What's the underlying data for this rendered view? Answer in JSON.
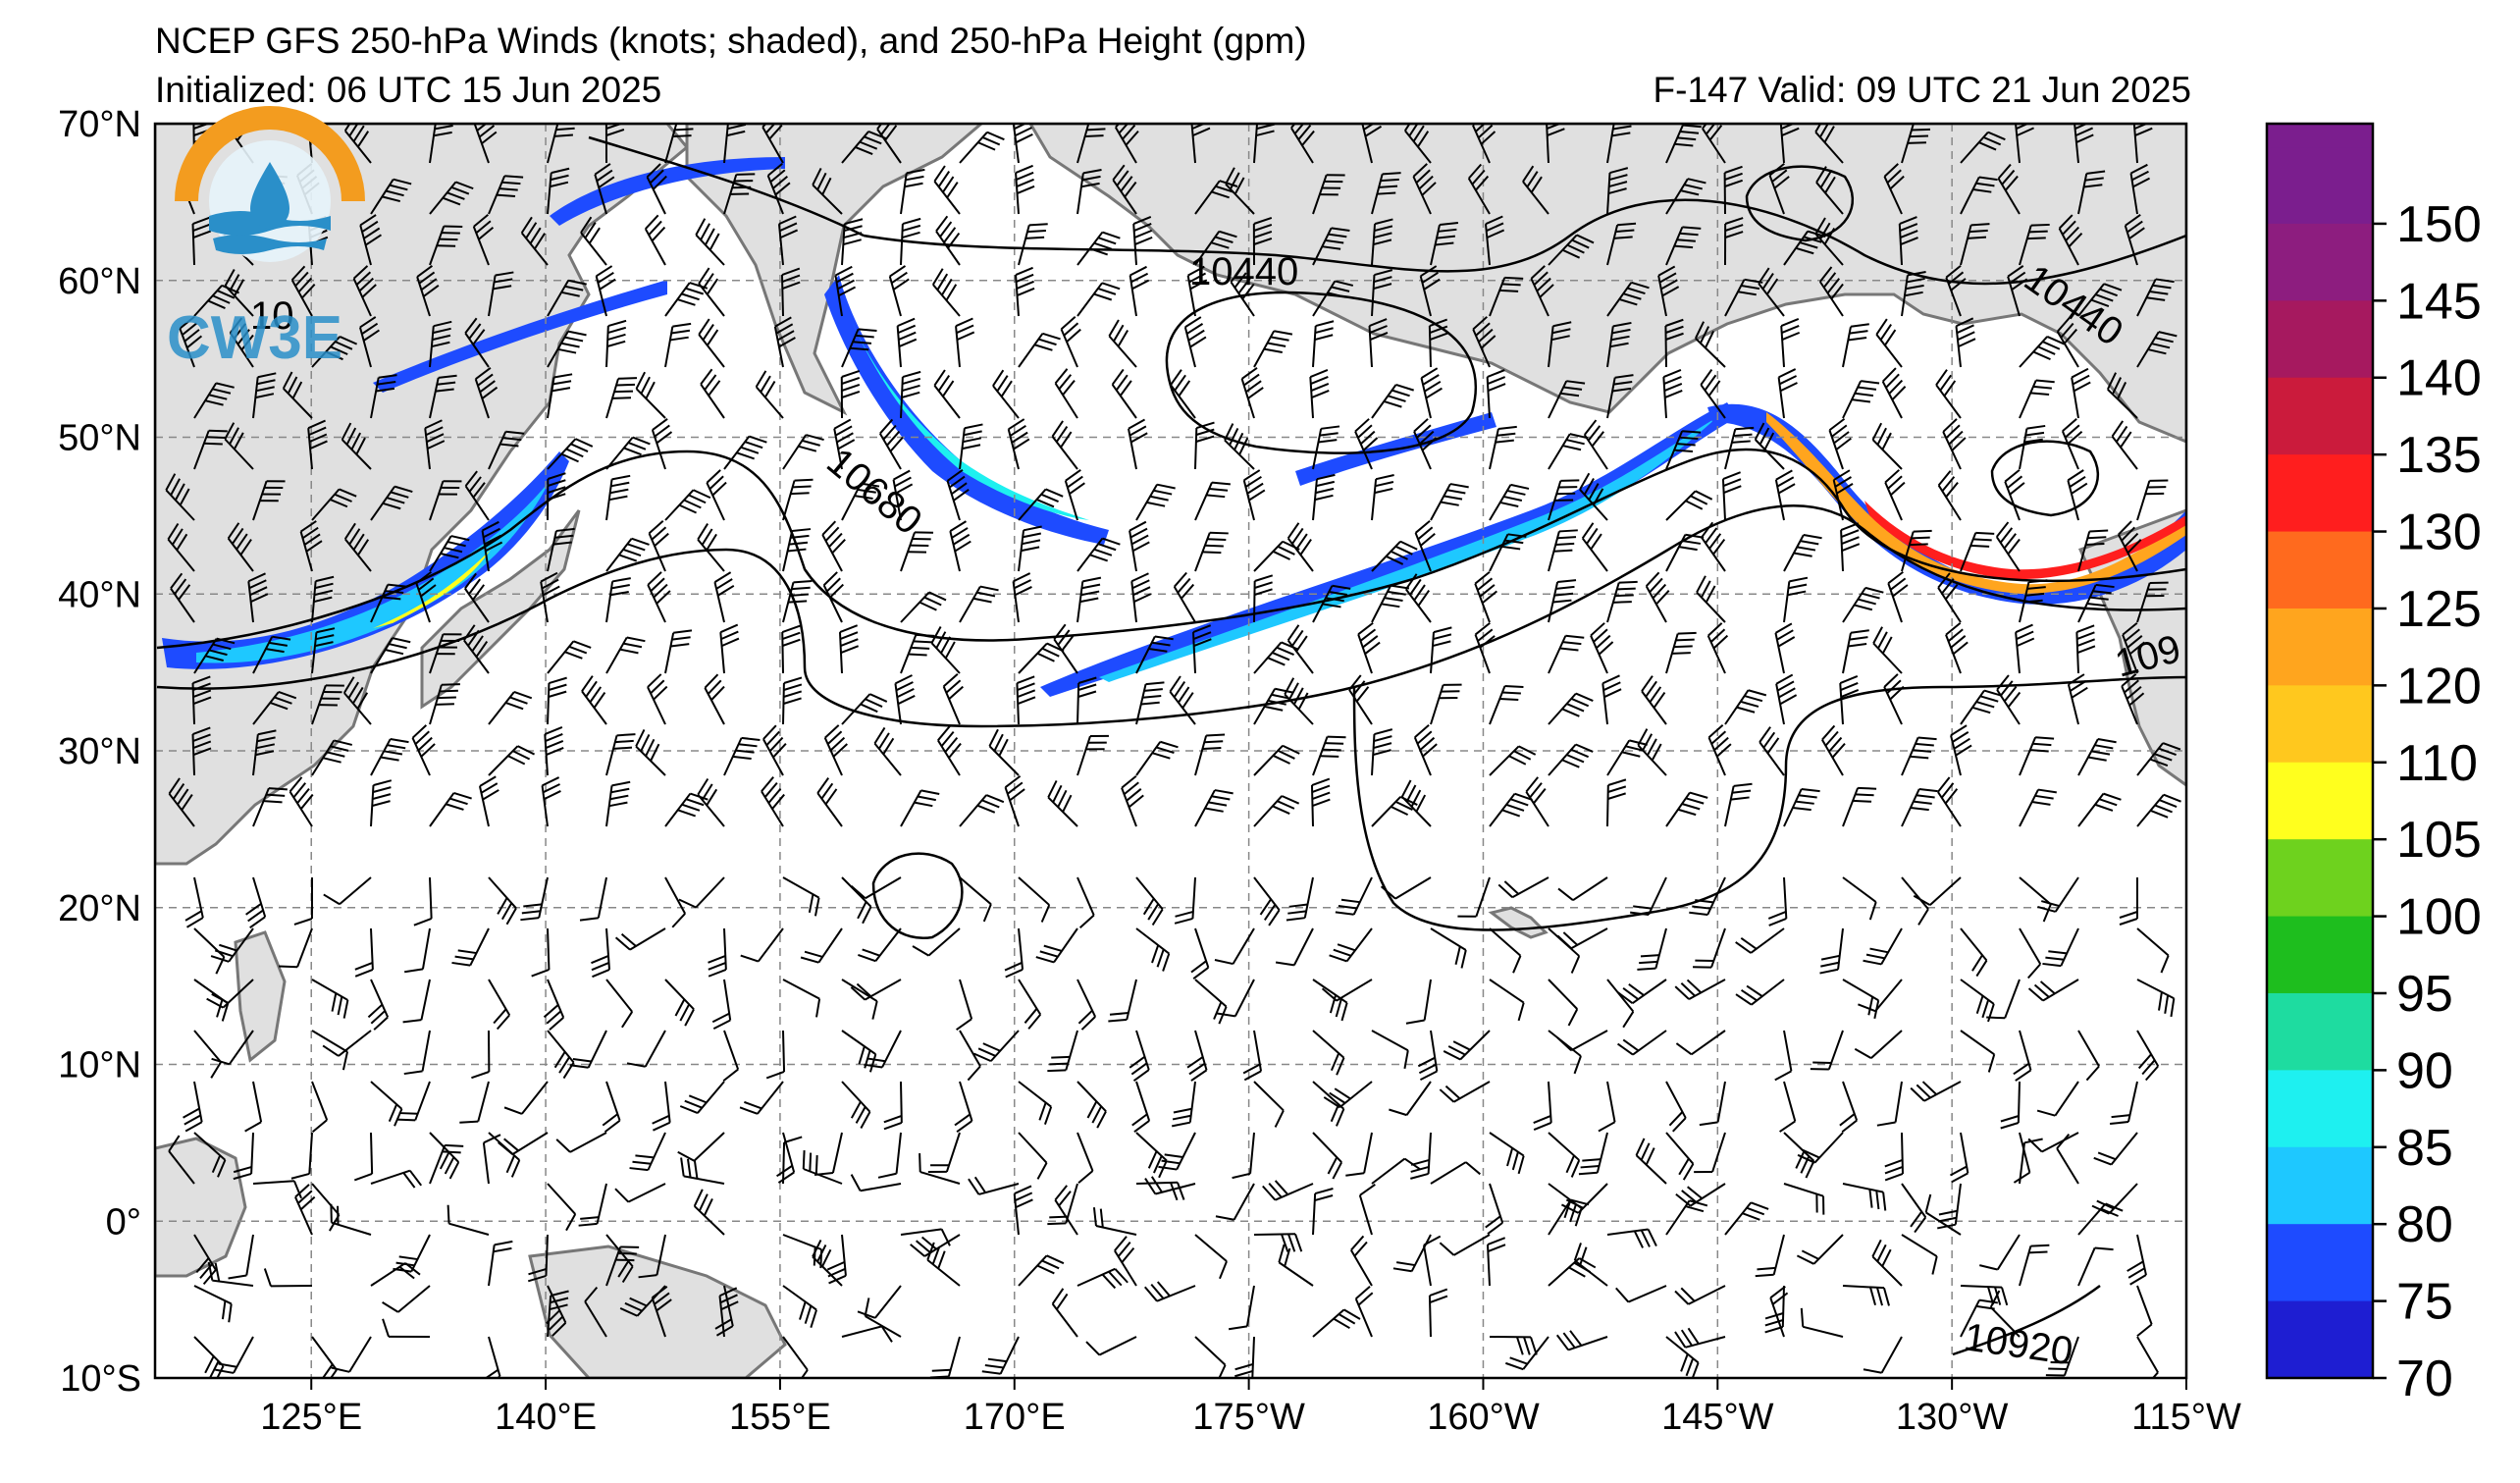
{
  "header": {
    "title": "NCEP GFS 250-hPa Winds (knots; shaded), and 250-hPa Height (gpm)",
    "initialized": "Initialized: 06 UTC 15 Jun 2025",
    "valid": "F-147  Valid: 09 UTC 21 Jun 2025"
  },
  "logo": {
    "text": "CW3E",
    "ring_color": "#f39c1f",
    "wave_color": "#2a8fc9",
    "icon": "water-drop-logo"
  },
  "map": {
    "lat_labels": [
      "70°N",
      "60°N",
      "50°N",
      "40°N",
      "30°N",
      "20°N",
      "10°N",
      "0°",
      "10°S"
    ],
    "lat_values": [
      70,
      60,
      50,
      40,
      30,
      20,
      10,
      0,
      -10
    ],
    "lon_labels": [
      "125°E",
      "140°E",
      "155°E",
      "170°E",
      "175°W",
      "160°W",
      "145°W",
      "130°W",
      "115°W"
    ],
    "lon_values": [
      125,
      140,
      155,
      170,
      185,
      200,
      215,
      230,
      245
    ],
    "lon_range": [
      115,
      245
    ],
    "lat_range": [
      -10,
      70
    ],
    "land_color": "#e0e0e0",
    "coast_color": "#777777"
  },
  "contours": {
    "labels": [
      {
        "text": "10440"
      },
      {
        "text": "10440"
      },
      {
        "text": "10680"
      },
      {
        "text": "109"
      },
      {
        "text": "10920"
      },
      {
        "text": "10"
      }
    ]
  },
  "colorbar": {
    "labels": [
      "150",
      "145",
      "140",
      "135",
      "130",
      "125",
      "120",
      "110",
      "105",
      "100",
      "95",
      "90",
      "85",
      "80",
      "75",
      "70"
    ],
    "colors": [
      "#7b1e8e",
      "#8d1d7f",
      "#a6195f",
      "#cb1b3c",
      "#ff1e1e",
      "#ff6a1e",
      "#ffa51e",
      "#ffc81e",
      "#ffff1e",
      "#6ed21e",
      "#1ebe1e",
      "#1edca0",
      "#1ef0f0",
      "#1ec8ff",
      "#1e4bff",
      "#1e1ed2"
    ]
  }
}
